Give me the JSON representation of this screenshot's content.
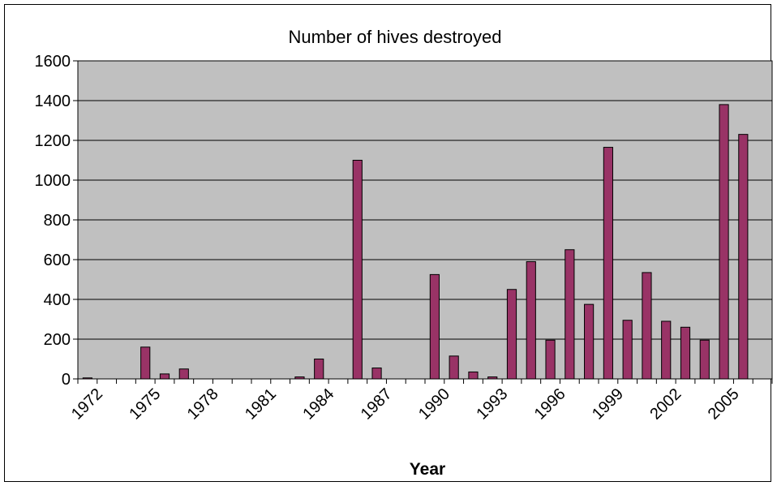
{
  "chart_data": {
    "type": "bar",
    "title": "Number of hives destroyed",
    "xlabel": "Year",
    "ylabel": "",
    "ylim": [
      0,
      1600
    ],
    "yticks": [
      0,
      200,
      400,
      600,
      800,
      1000,
      1200,
      1400,
      1600
    ],
    "xtick_labels": [
      "1972",
      "1975",
      "1978",
      "1981",
      "1984",
      "1987",
      "1990",
      "1993",
      "1996",
      "1999",
      "2002",
      "2005"
    ],
    "grid": true,
    "legend": "none",
    "colors": {
      "bar": "#993366",
      "plot_area": "#c0c0c0",
      "grid": "#000000"
    },
    "categories": [
      "1972",
      "1973",
      "1974",
      "1975",
      "1976",
      "1977",
      "1978",
      "1979",
      "1980",
      "1981",
      "1982",
      "1983",
      "1984",
      "1985",
      "1986",
      "1987",
      "1988",
      "1989",
      "1990",
      "1991",
      "1992",
      "1993",
      "1994",
      "1995",
      "1996",
      "1997",
      "1998",
      "1999",
      "2000",
      "2001",
      "2002",
      "2003",
      "2004",
      "2005",
      "2006",
      "2007"
    ],
    "values": [
      5,
      0,
      0,
      160,
      25,
      50,
      0,
      0,
      0,
      0,
      0,
      10,
      100,
      0,
      1100,
      55,
      0,
      0,
      525,
      115,
      35,
      10,
      450,
      590,
      195,
      650,
      375,
      1165,
      295,
      535,
      290,
      260,
      195,
      1380,
      1230,
      0
    ]
  }
}
